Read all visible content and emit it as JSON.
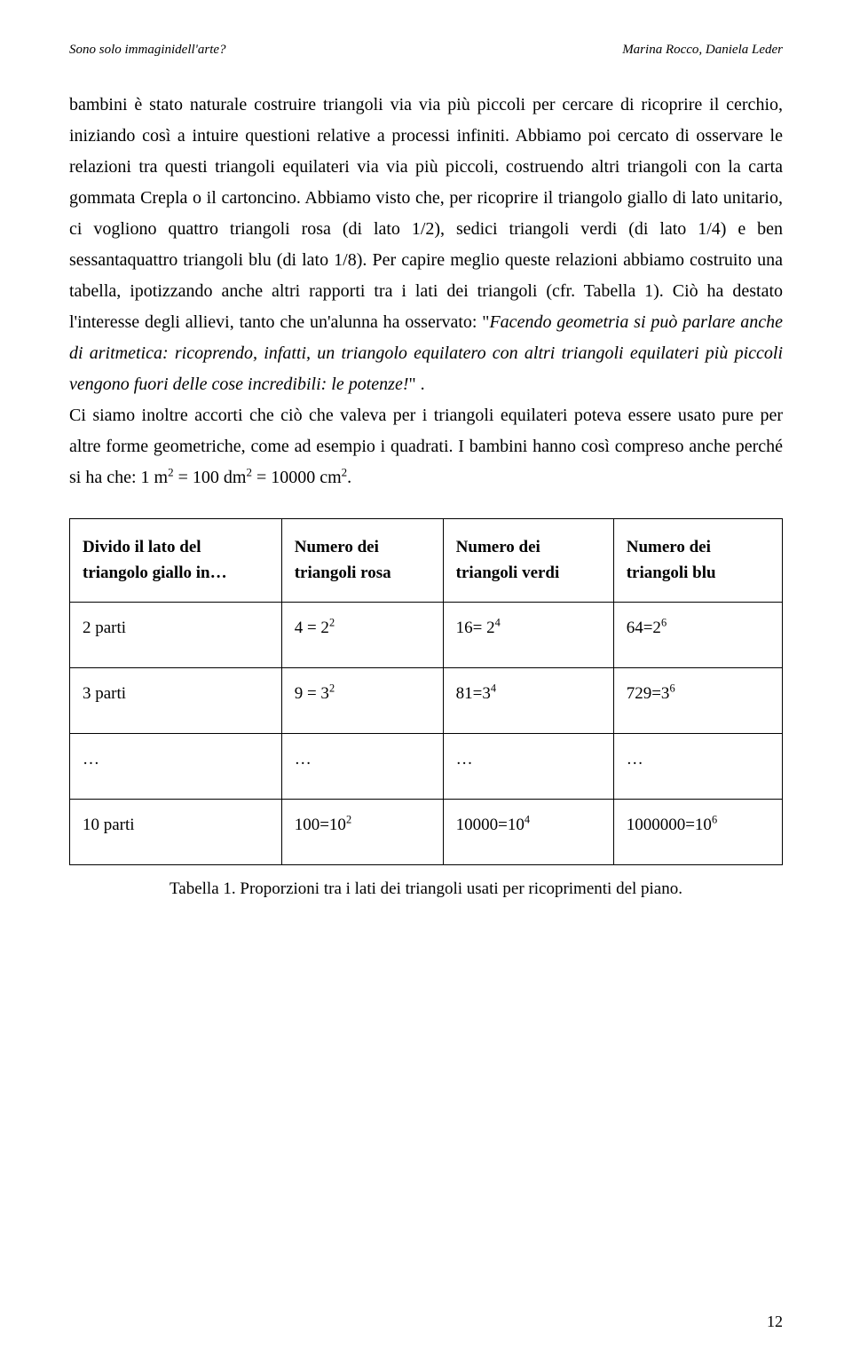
{
  "header": {
    "left": "Sono solo immaginidell'arte?",
    "right": "Marina Rocco, Daniela Leder"
  },
  "paragraphs": {
    "p1a": "bambini è stato naturale costruire triangoli via via più piccoli per cercare di ricoprire il cerchio, iniziando così a intuire questioni relative a processi infiniti. Abbiamo poi cercato di osservare le relazioni tra questi triangoli equilateri via via più piccoli, costruendo altri triangoli con la carta gommata Crepla o il cartoncino. Abbiamo visto che, per ricoprire il triangolo giallo di lato unitario, ci vogliono quattro triangoli rosa (di lato 1/2), sedici triangoli verdi (di lato 1/4) e ben sessantaquattro triangoli blu (di lato 1/8). Per capire meglio queste relazioni abbiamo costruito una tabella, ipotizzando anche altri rapporti tra i lati dei triangoli (cfr. Tabella 1). Ciò ha destato l'interesse degli allievi, tanto che un'alunna ha osservato: \"",
    "p1b_italic": "Facendo geometria si può parlare anche di aritmetica: ricoprendo, infatti, un triangolo equilatero con altri triangoli equilateri più piccoli vengono fuori delle cose incredibili: le potenze!",
    "p1c": "\" .",
    "p2a": "Ci siamo inoltre accorti che ciò che valeva per i triangoli equilateri poteva essere usato pure per altre forme geometriche, come ad esempio i quadrati. I bambini hanno così compreso anche perché si ha che: 1 m",
    "p2_sup1": "2",
    "p2b": " = 100 dm",
    "p2_sup2": "2",
    "p2c": " = 10000 cm",
    "p2_sup3": "2",
    "p2d": "."
  },
  "table": {
    "headers": {
      "h1": "Divido il lato del triangolo giallo in…",
      "h2": "Numero dei triangoli rosa",
      "h3": "Numero dei triangoli verdi",
      "h4": "Numero dei triangoli blu"
    },
    "rows": [
      {
        "c1": "2 parti",
        "c2a": "4 = 2",
        "c2s": "2",
        "c3a": "16= 2",
        "c3s": "4",
        "c4a": "64=2",
        "c4s": "6"
      },
      {
        "c1": "3 parti",
        "c2a": "9 = 3",
        "c2s": "2",
        "c3a": "81=3",
        "c3s": "4",
        "c4a": "729=3",
        "c4s": "6"
      },
      {
        "c1": "…",
        "c2a": "…",
        "c2s": "",
        "c3a": "…",
        "c3s": "",
        "c4a": "…",
        "c4s": ""
      },
      {
        "c1": "10 parti",
        "c2a": "100=10",
        "c2s": "2",
        "c3a": "10000=10",
        "c3s": "4",
        "c4a": "1000000=10",
        "c4s": "6"
      }
    ]
  },
  "caption": "Tabella 1. Proporzioni tra i lati dei triangoli usati per ricoprimenti del piano.",
  "page_number": "12"
}
